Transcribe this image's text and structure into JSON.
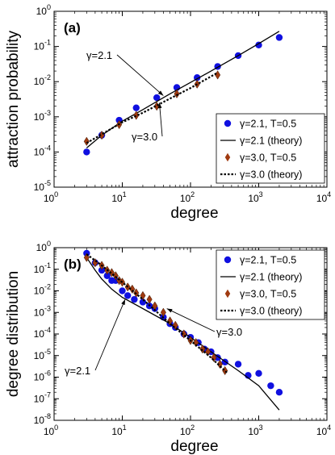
{
  "chart_data": [
    {
      "type": "scatter",
      "panel_label": "(a)",
      "xlabel": "degree",
      "ylabel": "attraction probability",
      "x_scale": "log",
      "y_scale": "log",
      "xlim": [
        1,
        10000
      ],
      "ylim": [
        1e-05,
        1
      ],
      "x_ticks": [
        {
          "value": 1,
          "mantissa": "10",
          "exp": "0"
        },
        {
          "value": 10,
          "mantissa": "10",
          "exp": "1"
        },
        {
          "value": 100,
          "mantissa": "10",
          "exp": "2"
        },
        {
          "value": 1000,
          "mantissa": "10",
          "exp": "3"
        },
        {
          "value": 10000,
          "mantissa": "10",
          "exp": "4"
        }
      ],
      "y_ticks": [
        {
          "value": 1e-05,
          "mantissa": "10",
          "exp": "-5"
        },
        {
          "value": 0.0001,
          "mantissa": "10",
          "exp": "-4"
        },
        {
          "value": 0.001,
          "mantissa": "10",
          "exp": "-3"
        },
        {
          "value": 0.01,
          "mantissa": "10",
          "exp": "-2"
        },
        {
          "value": 0.1,
          "mantissa": "10",
          "exp": "-1"
        },
        {
          "value": 1,
          "mantissa": "10",
          "exp": "0"
        }
      ],
      "legend_position": "bottom-right",
      "series": [
        {
          "name": "γ=2.1, T=0.5",
          "kind": "points",
          "marker": "circle",
          "color": "#1010e0",
          "x": [
            3,
            5,
            9,
            16,
            32,
            63,
            125,
            250,
            500,
            1000,
            2000
          ],
          "y": [
            0.0001,
            0.0003,
            0.0008,
            0.0018,
            0.0035,
            0.0068,
            0.013,
            0.027,
            0.055,
            0.11,
            0.18
          ]
        },
        {
          "name": "γ=2.1 (theory)",
          "kind": "line",
          "dash": "solid",
          "color": "#000000",
          "x": [
            3,
            5,
            10,
            20,
            50,
            100,
            200,
            500,
            1000,
            2000
          ],
          "y": [
            0.00013,
            0.0003,
            0.00075,
            0.0016,
            0.0045,
            0.0095,
            0.02,
            0.055,
            0.12,
            0.27
          ]
        },
        {
          "name": "γ=3.0, T=0.5",
          "kind": "points",
          "marker": "diamond",
          "color": "#a03a10",
          "x": [
            3,
            5,
            9,
            16,
            32,
            63,
            125,
            250
          ],
          "y": [
            0.0002,
            0.0003,
            0.0006,
            0.0011,
            0.002,
            0.0045,
            0.0085,
            0.0155
          ]
        },
        {
          "name": "γ=3.0 (theory)",
          "kind": "line",
          "dash": "dotted",
          "color": "#000000",
          "x": [
            3,
            5,
            10,
            20,
            50,
            100,
            250
          ],
          "y": [
            0.00018,
            0.00032,
            0.0007,
            0.0013,
            0.0033,
            0.0066,
            0.018
          ]
        }
      ],
      "annotations": [
        {
          "text": "γ=2.1",
          "target_x": 40,
          "target_y": 0.004
        },
        {
          "text": "γ=3.0",
          "target_x": 35,
          "target_y": 0.0025
        }
      ]
    },
    {
      "type": "scatter",
      "panel_label": "(b)",
      "xlabel": "degree",
      "ylabel": "degree distribution",
      "x_scale": "log",
      "y_scale": "log",
      "xlim": [
        1,
        10000
      ],
      "ylim": [
        1e-08,
        1
      ],
      "x_ticks": [
        {
          "value": 1,
          "mantissa": "10",
          "exp": "0"
        },
        {
          "value": 10,
          "mantissa": "10",
          "exp": "1"
        },
        {
          "value": 100,
          "mantissa": "10",
          "exp": "2"
        },
        {
          "value": 1000,
          "mantissa": "10",
          "exp": "3"
        },
        {
          "value": 10000,
          "mantissa": "10",
          "exp": "4"
        }
      ],
      "y_ticks": [
        {
          "value": 1e-08,
          "mantissa": "10",
          "exp": "-8"
        },
        {
          "value": 1e-07,
          "mantissa": "10",
          "exp": "-7"
        },
        {
          "value": 1e-06,
          "mantissa": "10",
          "exp": "-6"
        },
        {
          "value": 1e-05,
          "mantissa": "10",
          "exp": "-5"
        },
        {
          "value": 0.0001,
          "mantissa": "10",
          "exp": "-4"
        },
        {
          "value": 0.001,
          "mantissa": "10",
          "exp": "-3"
        },
        {
          "value": 0.01,
          "mantissa": "10",
          "exp": "-2"
        },
        {
          "value": 0.1,
          "mantissa": "10",
          "exp": "-1"
        },
        {
          "value": 1,
          "mantissa": "10",
          "exp": "0"
        }
      ],
      "legend_position": "top-right",
      "series": [
        {
          "name": "γ=2.1, T=0.5",
          "kind": "points",
          "marker": "circle",
          "color": "#1010e0",
          "x": [
            3,
            4,
            5,
            6,
            7,
            8,
            10,
            12,
            15,
            20,
            25,
            30,
            40,
            50,
            60,
            80,
            100,
            130,
            160,
            200,
            250,
            320,
            500,
            700,
            1000,
            1500,
            2000
          ],
          "y": [
            0.55,
            0.2,
            0.09,
            0.05,
            0.03,
            0.03,
            0.01,
            0.006,
            0.004,
            0.003,
            0.002,
            0.0015,
            0.0006,
            0.0003,
            0.0002,
            0.0001,
            7e-05,
            4e-05,
            2e-05,
            1.5e-05,
            8e-06,
            5e-06,
            4e-06,
            1.2e-06,
            1.5e-06,
            4e-07,
            2e-07
          ]
        },
        {
          "name": "γ=2.1 (theory)",
          "kind": "line",
          "dash": "solid",
          "color": "#000000",
          "x": [
            3,
            4,
            5,
            7,
            10,
            20,
            50,
            100,
            200,
            500,
            1000,
            2000
          ],
          "y": [
            0.35,
            0.09,
            0.035,
            0.012,
            0.005,
            0.0015,
            0.0003,
            7e-05,
            1.5e-05,
            2e-06,
            4e-07,
            3e-08
          ]
        },
        {
          "name": "γ=3.0, T=0.5",
          "kind": "points",
          "marker": "diamond",
          "color": "#a03a10",
          "x": [
            3,
            4,
            5,
            6,
            7,
            8,
            9,
            10,
            12,
            14,
            16,
            20,
            25,
            30,
            40,
            50,
            60,
            80,
            100,
            120,
            150,
            180,
            220,
            270,
            320
          ],
          "y": [
            0.35,
            0.2,
            0.15,
            0.09,
            0.07,
            0.05,
            0.03,
            0.025,
            0.015,
            0.012,
            0.008,
            0.006,
            0.004,
            0.002,
            0.001,
            0.0004,
            0.00025,
            0.0001,
            5e-05,
            4e-05,
            2e-05,
            1.5e-05,
            8e-06,
            4e-06,
            2e-06
          ]
        },
        {
          "name": "γ=3.0 (theory)",
          "kind": "line",
          "dash": "dotted",
          "color": "#000000",
          "x": [
            3,
            5,
            10,
            20,
            50,
            100,
            200,
            350
          ],
          "y": [
            0.5,
            0.15,
            0.025,
            0.004,
            0.0003,
            5e-05,
            8e-06,
            1.5e-06
          ]
        }
      ],
      "annotations": [
        {
          "text": "γ=3.0",
          "target_x": 45,
          "target_y": 0.0015
        },
        {
          "text": "γ=2.1",
          "target_x": 11,
          "target_y": 0.004
        }
      ]
    }
  ]
}
